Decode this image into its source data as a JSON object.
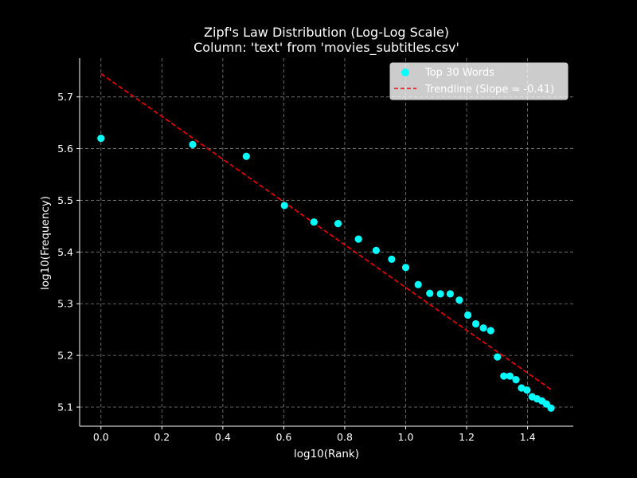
{
  "chart_data": {
    "type": "scatter",
    "title": "Zipf's Law Distribution (Log-Log Scale)",
    "subtitle": "Column: 'text' from 'movies_subtitles.csv'",
    "xlabel": "log10(Rank)",
    "ylabel": "log10(Frequency)",
    "xlim": [
      -0.07,
      1.55
    ],
    "ylim": [
      5.063,
      5.775
    ],
    "xticks": [
      0.0,
      0.2,
      0.4,
      0.6,
      0.8,
      1.0,
      1.2,
      1.4
    ],
    "xtick_labels": [
      "0.0",
      "0.2",
      "0.4",
      "0.6",
      "0.8",
      "1.0",
      "1.2",
      "1.4"
    ],
    "yticks": [
      5.1,
      5.2,
      5.3,
      5.4,
      5.5,
      5.6,
      5.7
    ],
    "ytick_labels": [
      "5.1",
      "5.2",
      "5.3",
      "5.4",
      "5.5",
      "5.6",
      "5.7"
    ],
    "grid": true,
    "legend_position": "top-right",
    "series": [
      {
        "name": "Top 30 Words",
        "kind": "scatter",
        "color": "#00ffff",
        "x": [
          0.0,
          0.301,
          0.477,
          0.602,
          0.699,
          0.778,
          0.845,
          0.903,
          0.954,
          1.0,
          1.041,
          1.079,
          1.114,
          1.146,
          1.176,
          1.204,
          1.23,
          1.255,
          1.279,
          1.301,
          1.322,
          1.342,
          1.362,
          1.38,
          1.398,
          1.415,
          1.431,
          1.447,
          1.462,
          1.477
        ],
        "y": [
          5.62,
          5.608,
          5.585,
          5.49,
          5.458,
          5.455,
          5.425,
          5.403,
          5.386,
          5.37,
          5.337,
          5.32,
          5.319,
          5.319,
          5.307,
          5.278,
          5.261,
          5.253,
          5.248,
          5.197,
          5.16,
          5.16,
          5.153,
          5.137,
          5.133,
          5.12,
          5.116,
          5.112,
          5.106,
          5.098
        ]
      },
      {
        "name": "Trendline (Slope ≈ -0.41)",
        "kind": "line",
        "style": "dashed",
        "color": "#ff0000",
        "x": [
          0.0,
          1.477
        ],
        "y": [
          5.745,
          5.134
        ]
      }
    ]
  }
}
